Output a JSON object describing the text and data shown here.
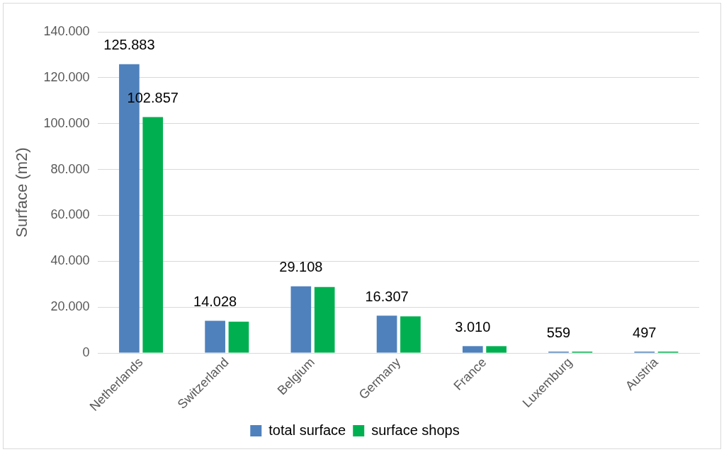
{
  "chart_data": {
    "type": "bar",
    "ylabel": "Surface (m2)",
    "categories": [
      "Netherlands",
      "Switzerland",
      "Belgium",
      "Germany",
      "France",
      "Luxemburg",
      "Austria"
    ],
    "series": [
      {
        "name": "total surface",
        "color": "#4f81bd",
        "values": [
          125883,
          14028,
          29108,
          16307,
          3010,
          559,
          497
        ],
        "value_labels": [
          "125.883",
          "14.028",
          "29.108",
          "16.307",
          "3.010",
          "559",
          "497"
        ]
      },
      {
        "name": "surface shops",
        "color": "#00b050",
        "values": [
          102857,
          13700,
          28800,
          16000,
          3000,
          500,
          500
        ],
        "value_labels": [
          "102.857",
          null,
          null,
          null,
          null,
          null,
          null
        ]
      }
    ],
    "ylim": [
      0,
      140000
    ],
    "yticks": [
      {
        "value": 0,
        "label": "0"
      },
      {
        "value": 20000,
        "label": "20.000"
      },
      {
        "value": 40000,
        "label": "40.000"
      },
      {
        "value": 60000,
        "label": "60.000"
      },
      {
        "value": 80000,
        "label": "80.000"
      },
      {
        "value": 100000,
        "label": "100.000"
      },
      {
        "value": 120000,
        "label": "120.000"
      },
      {
        "value": 140000,
        "label": "140.000"
      }
    ],
    "grid": "y",
    "legend": "bottom"
  }
}
